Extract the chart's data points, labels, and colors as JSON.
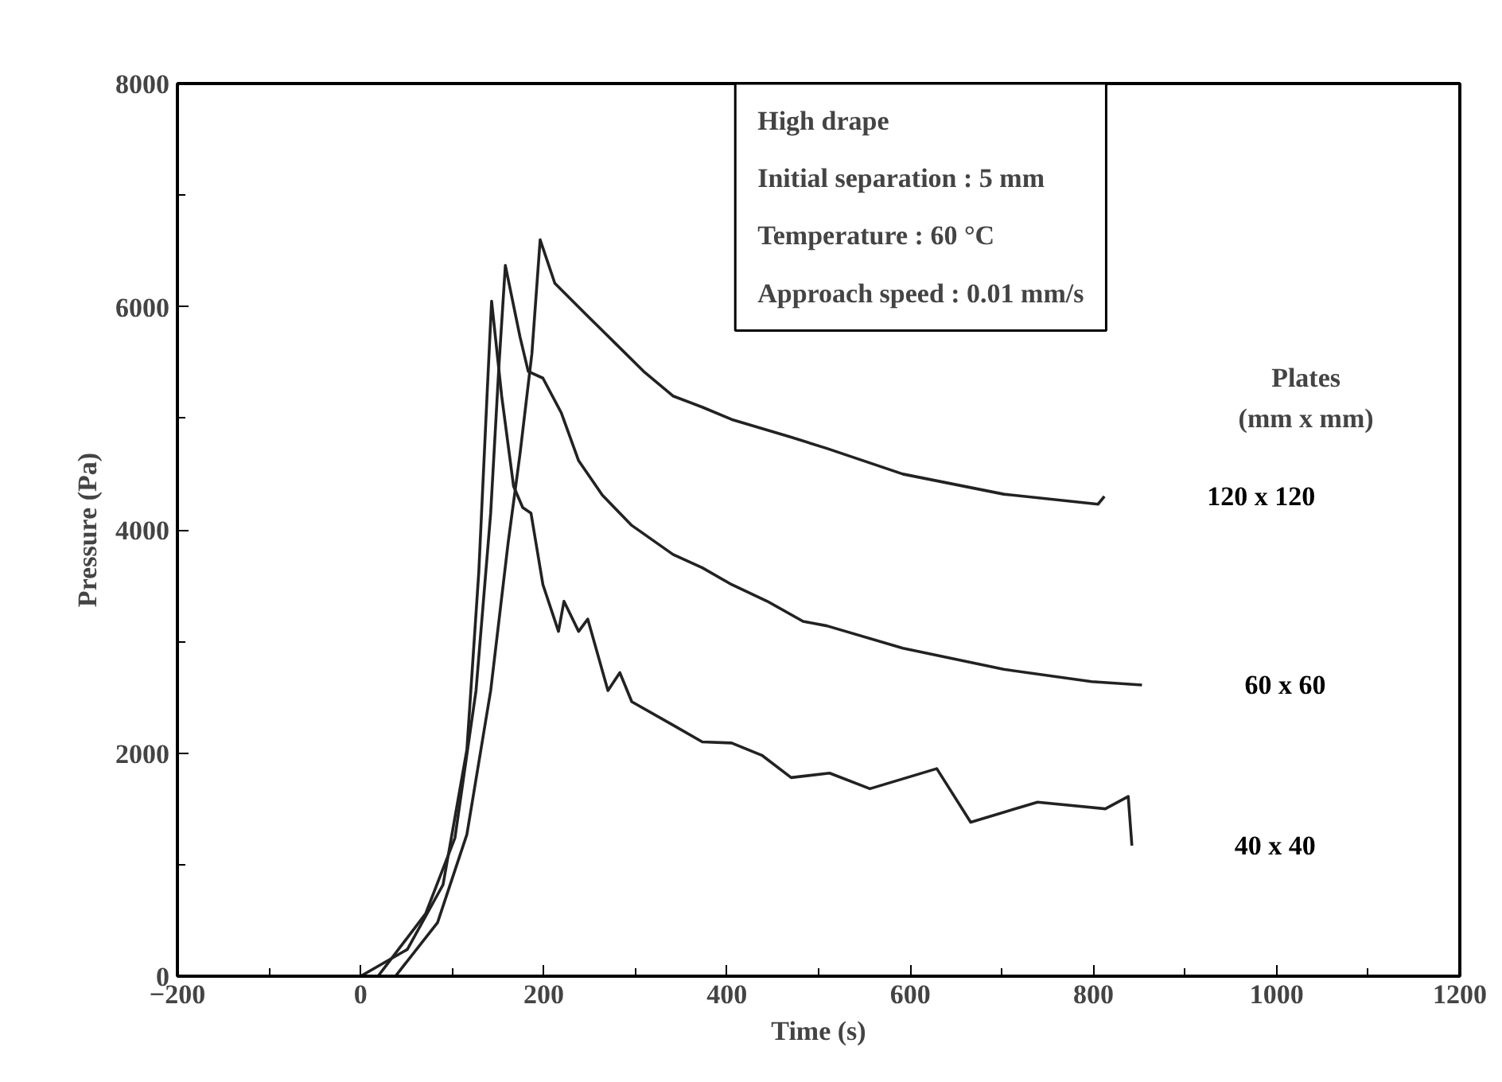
{
  "chart_data": {
    "type": "line",
    "xlabel": "Time (s)",
    "ylabel": "Pressure (Pa)",
    "xlim": [
      -200,
      1200
    ],
    "xticks": [
      -200,
      0,
      200,
      400,
      600,
      800,
      1000,
      1200
    ],
    "ylim": [
      0,
      8000
    ],
    "yticks": [
      0,
      2000,
      4000,
      6000,
      8000
    ],
    "grid": false,
    "legend": false,
    "marker": "none",
    "line_style": "solid",
    "annotations": [
      "High drape",
      "Initial separation : 5 mm",
      "Temperature : 60 °C",
      "Approach speed : 0.01 mm/s",
      "Plates",
      "(mm x mm)"
    ],
    "series": [
      {
        "name": "40 x 40",
        "color": "#222222",
        "x": [
          0,
          51,
          90,
          116,
          129,
          138,
          143,
          154,
          167,
          177,
          186,
          199,
          216,
          222,
          238,
          248,
          270,
          283,
          296,
          341,
          373,
          405,
          438,
          470,
          512,
          556,
          629,
          666,
          739,
          813,
          838,
          842
        ],
        "values": [
          0,
          240,
          820,
          2030,
          3620,
          5200,
          6050,
          5200,
          4390,
          4200,
          4150,
          3510,
          3090,
          3360,
          3090,
          3200,
          2560,
          2720,
          2460,
          2250,
          2100,
          2090,
          1980,
          1780,
          1820,
          1680,
          1860,
          1380,
          1560,
          1500,
          1610,
          1170
        ]
      },
      {
        "name": "60 x 60",
        "color": "#222222",
        "x": [
          19,
          71,
          103,
          126,
          142,
          151,
          158,
          174,
          183,
          199,
          219,
          238,
          264,
          296,
          341,
          373,
          405,
          444,
          483,
          509,
          592,
          702,
          798,
          853
        ],
        "values": [
          0,
          560,
          1240,
          2560,
          4150,
          5470,
          6370,
          5730,
          5420,
          5360,
          5050,
          4620,
          4310,
          4040,
          3780,
          3660,
          3510,
          3360,
          3180,
          3140,
          2940,
          2750,
          2640,
          2610
        ]
      },
      {
        "name": "120 x 120",
        "color": "#222222",
        "x": [
          38,
          84,
          116,
          142,
          161,
          174,
          187,
          196,
          212,
          245,
          277,
          309,
          341,
          373,
          405,
          470,
          509,
          592,
          702,
          805,
          812
        ],
        "values": [
          0,
          480,
          1270,
          2560,
          3880,
          4680,
          5580,
          6600,
          6210,
          5940,
          5680,
          5420,
          5200,
          5100,
          4990,
          4830,
          4730,
          4500,
          4320,
          4230,
          4300
        ]
      }
    ]
  }
}
